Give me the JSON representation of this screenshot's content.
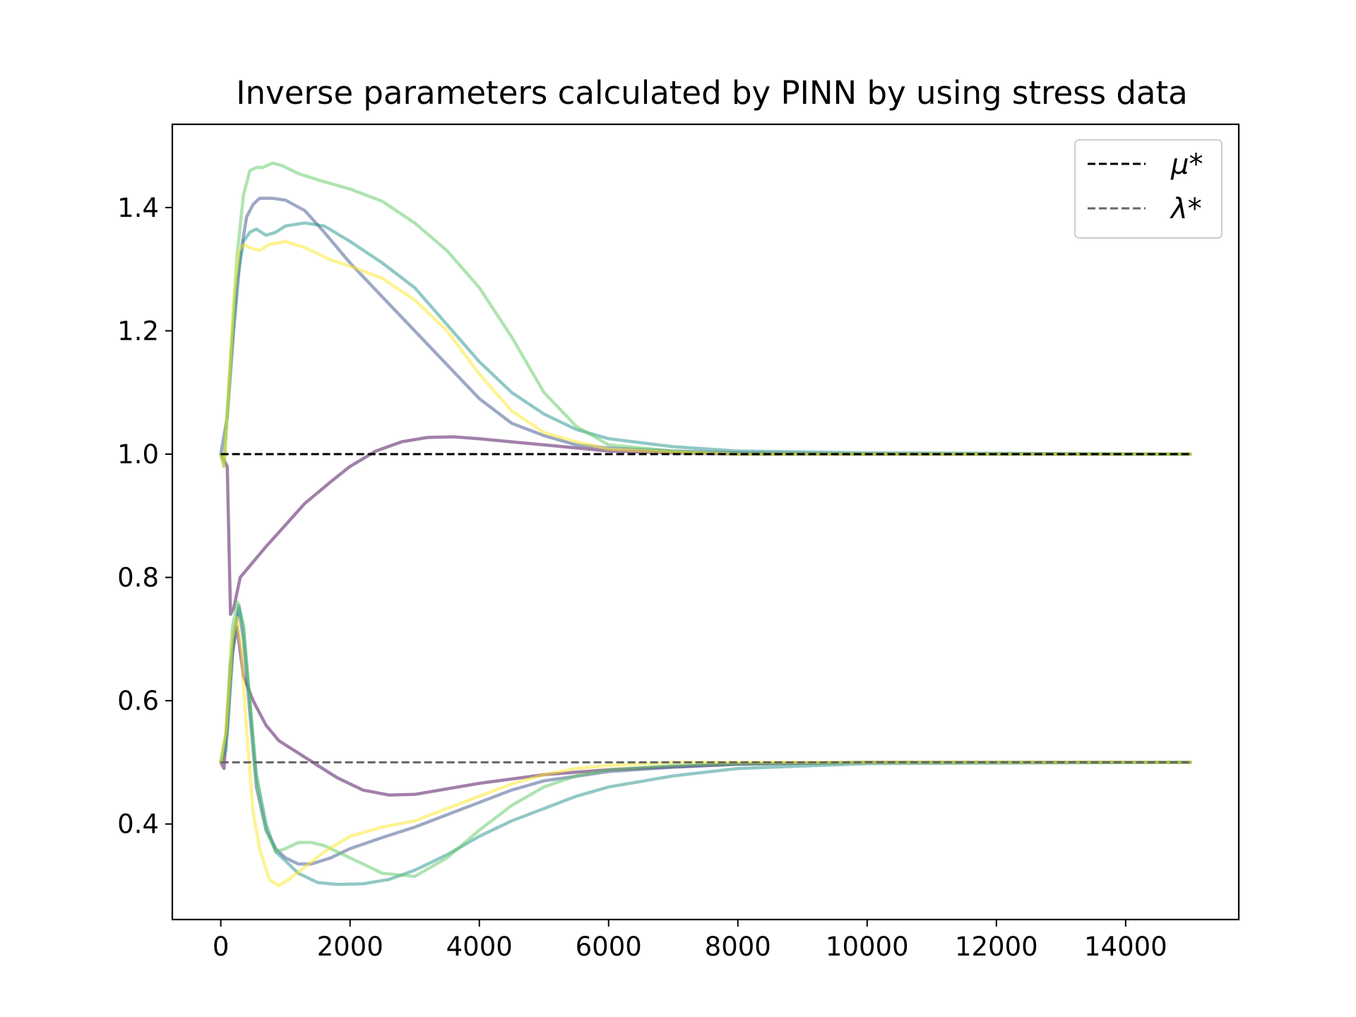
{
  "chart_data": {
    "type": "line",
    "title": "Inverse parameters calculated by PINN by using stress data",
    "xlabel": "",
    "ylabel": "",
    "xlim": [
      -750,
      15750
    ],
    "ylim": [
      0.245,
      1.535
    ],
    "xticks": [
      0,
      2000,
      4000,
      6000,
      8000,
      10000,
      12000,
      14000
    ],
    "xtick_labels": [
      "0",
      "2000",
      "4000",
      "6000",
      "8000",
      "10000",
      "12000",
      "14000"
    ],
    "yticks": [
      0.4,
      0.6,
      0.8,
      1.0,
      1.2,
      1.4
    ],
    "ytick_labels": [
      "0.4",
      "0.6",
      "0.8",
      "1.0",
      "1.2",
      "1.4"
    ],
    "grid": false,
    "legend": {
      "placement": "top-right",
      "entries": [
        {
          "label": "μ*",
          "color": "#000000",
          "style": "dashed"
        },
        {
          "label": "λ*",
          "color": "#666666",
          "style": "dashed"
        }
      ]
    },
    "reference_lines": [
      {
        "name": "μ*",
        "y": 1.0,
        "x_range": [
          0,
          15000
        ],
        "color": "#000000"
      },
      {
        "name": "λ*",
        "y": 0.5,
        "x_range": [
          0,
          15000
        ],
        "color": "#666666"
      }
    ],
    "series": [
      {
        "color": "#440154",
        "points": [
          [
            0,
            1.0
          ],
          [
            50,
            0.99
          ],
          [
            100,
            0.98
          ],
          [
            150,
            0.74
          ],
          [
            200,
            0.75
          ],
          [
            300,
            0.8
          ],
          [
            500,
            0.825
          ],
          [
            700,
            0.85
          ],
          [
            1000,
            0.885
          ],
          [
            1300,
            0.92
          ],
          [
            1700,
            0.955
          ],
          [
            2000,
            0.98
          ],
          [
            2400,
            1.005
          ],
          [
            2800,
            1.02
          ],
          [
            3200,
            1.027
          ],
          [
            3600,
            1.028
          ],
          [
            4000,
            1.025
          ],
          [
            5000,
            1.015
          ],
          [
            6000,
            1.005
          ],
          [
            7000,
            1.002
          ],
          [
            8000,
            1.0
          ],
          [
            10000,
            1.0
          ],
          [
            15000,
            1.0
          ]
        ]
      },
      {
        "color": "#440154",
        "points": [
          [
            0,
            0.5
          ],
          [
            50,
            0.49
          ],
          [
            150,
            0.66
          ],
          [
            250,
            0.72
          ],
          [
            350,
            0.64
          ],
          [
            500,
            0.6
          ],
          [
            700,
            0.56
          ],
          [
            900,
            0.535
          ],
          [
            1200,
            0.515
          ],
          [
            1500,
            0.495
          ],
          [
            1800,
            0.475
          ],
          [
            2200,
            0.455
          ],
          [
            2600,
            0.447
          ],
          [
            3000,
            0.448
          ],
          [
            3500,
            0.457
          ],
          [
            4000,
            0.466
          ],
          [
            5000,
            0.48
          ],
          [
            6000,
            0.488
          ],
          [
            7000,
            0.493
          ],
          [
            8000,
            0.497
          ],
          [
            10000,
            0.5
          ],
          [
            15000,
            0.5
          ]
        ]
      },
      {
        "color": "#3b528b",
        "points": [
          [
            0,
            1.0
          ],
          [
            100,
            1.06
          ],
          [
            200,
            1.2
          ],
          [
            300,
            1.32
          ],
          [
            400,
            1.385
          ],
          [
            500,
            1.405
          ],
          [
            600,
            1.415
          ],
          [
            800,
            1.415
          ],
          [
            1000,
            1.412
          ],
          [
            1300,
            1.395
          ],
          [
            1600,
            1.36
          ],
          [
            2000,
            1.31
          ],
          [
            2500,
            1.255
          ],
          [
            3000,
            1.2
          ],
          [
            3500,
            1.145
          ],
          [
            4000,
            1.09
          ],
          [
            4500,
            1.05
          ],
          [
            5000,
            1.03
          ],
          [
            5500,
            1.015
          ],
          [
            6000,
            1.01
          ],
          [
            7000,
            1.005
          ],
          [
            8000,
            1.002
          ],
          [
            10000,
            1.0
          ],
          [
            15000,
            1.0
          ]
        ]
      },
      {
        "color": "#3b528b",
        "points": [
          [
            0,
            0.5
          ],
          [
            100,
            0.55
          ],
          [
            200,
            0.71
          ],
          [
            280,
            0.75
          ],
          [
            350,
            0.7
          ],
          [
            450,
            0.58
          ],
          [
            550,
            0.46
          ],
          [
            700,
            0.39
          ],
          [
            850,
            0.36
          ],
          [
            1000,
            0.345
          ],
          [
            1200,
            0.335
          ],
          [
            1400,
            0.335
          ],
          [
            1700,
            0.345
          ],
          [
            2000,
            0.36
          ],
          [
            2500,
            0.378
          ],
          [
            3000,
            0.395
          ],
          [
            3500,
            0.415
          ],
          [
            4000,
            0.435
          ],
          [
            4500,
            0.455
          ],
          [
            5000,
            0.47
          ],
          [
            6000,
            0.485
          ],
          [
            7000,
            0.492
          ],
          [
            8000,
            0.497
          ],
          [
            10000,
            0.5
          ],
          [
            15000,
            0.5
          ]
        ]
      },
      {
        "color": "#21918c",
        "points": [
          [
            0,
            1.0
          ],
          [
            50,
            0.98
          ],
          [
            150,
            1.15
          ],
          [
            250,
            1.28
          ],
          [
            350,
            1.345
          ],
          [
            450,
            1.36
          ],
          [
            550,
            1.365
          ],
          [
            700,
            1.355
          ],
          [
            850,
            1.36
          ],
          [
            1000,
            1.37
          ],
          [
            1300,
            1.375
          ],
          [
            1600,
            1.37
          ],
          [
            2000,
            1.345
          ],
          [
            2500,
            1.31
          ],
          [
            3000,
            1.27
          ],
          [
            3500,
            1.21
          ],
          [
            4000,
            1.15
          ],
          [
            4500,
            1.1
          ],
          [
            5000,
            1.065
          ],
          [
            5500,
            1.04
          ],
          [
            6000,
            1.025
          ],
          [
            7000,
            1.012
          ],
          [
            8000,
            1.005
          ],
          [
            10000,
            1.002
          ],
          [
            15000,
            1.0
          ]
        ]
      },
      {
        "color": "#21918c",
        "points": [
          [
            0,
            0.5
          ],
          [
            80,
            0.52
          ],
          [
            200,
            0.7
          ],
          [
            280,
            0.755
          ],
          [
            350,
            0.72
          ],
          [
            450,
            0.6
          ],
          [
            550,
            0.48
          ],
          [
            700,
            0.4
          ],
          [
            850,
            0.355
          ],
          [
            1000,
            0.34
          ],
          [
            1200,
            0.32
          ],
          [
            1500,
            0.305
          ],
          [
            1800,
            0.302
          ],
          [
            2200,
            0.303
          ],
          [
            2600,
            0.31
          ],
          [
            3000,
            0.325
          ],
          [
            3500,
            0.35
          ],
          [
            4000,
            0.38
          ],
          [
            4500,
            0.405
          ],
          [
            5000,
            0.425
          ],
          [
            5500,
            0.445
          ],
          [
            6000,
            0.46
          ],
          [
            7000,
            0.478
          ],
          [
            8000,
            0.49
          ],
          [
            10000,
            0.498
          ],
          [
            15000,
            0.5
          ]
        ]
      },
      {
        "color": "#5ec962",
        "points": [
          [
            0,
            1.0
          ],
          [
            50,
            0.99
          ],
          [
            150,
            1.15
          ],
          [
            250,
            1.32
          ],
          [
            350,
            1.42
          ],
          [
            450,
            1.46
          ],
          [
            550,
            1.465
          ],
          [
            650,
            1.465
          ],
          [
            800,
            1.472
          ],
          [
            950,
            1.468
          ],
          [
            1200,
            1.455
          ],
          [
            1500,
            1.445
          ],
          [
            2000,
            1.43
          ],
          [
            2500,
            1.41
          ],
          [
            3000,
            1.375
          ],
          [
            3500,
            1.33
          ],
          [
            4000,
            1.27
          ],
          [
            4500,
            1.19
          ],
          [
            5000,
            1.1
          ],
          [
            5500,
            1.045
          ],
          [
            6000,
            1.015
          ],
          [
            7000,
            1.005
          ],
          [
            8000,
            1.0
          ],
          [
            10000,
            1.0
          ],
          [
            15000,
            1.0
          ]
        ]
      },
      {
        "color": "#5ec962",
        "points": [
          [
            0,
            0.5
          ],
          [
            80,
            0.55
          ],
          [
            180,
            0.72
          ],
          [
            260,
            0.76
          ],
          [
            350,
            0.72
          ],
          [
            450,
            0.6
          ],
          [
            550,
            0.47
          ],
          [
            700,
            0.39
          ],
          [
            850,
            0.355
          ],
          [
            1000,
            0.36
          ],
          [
            1200,
            0.37
          ],
          [
            1400,
            0.37
          ],
          [
            1600,
            0.365
          ],
          [
            1900,
            0.35
          ],
          [
            2200,
            0.335
          ],
          [
            2500,
            0.32
          ],
          [
            3000,
            0.315
          ],
          [
            3500,
            0.345
          ],
          [
            4000,
            0.39
          ],
          [
            4500,
            0.43
          ],
          [
            5000,
            0.46
          ],
          [
            5500,
            0.478
          ],
          [
            6000,
            0.488
          ],
          [
            7000,
            0.495
          ],
          [
            8000,
            0.498
          ],
          [
            10000,
            0.5
          ],
          [
            15000,
            0.5
          ]
        ]
      },
      {
        "color": "#fde725",
        "points": [
          [
            0,
            1.0
          ],
          [
            50,
            0.98
          ],
          [
            120,
            1.1
          ],
          [
            200,
            1.25
          ],
          [
            280,
            1.33
          ],
          [
            350,
            1.34
          ],
          [
            450,
            1.335
          ],
          [
            600,
            1.33
          ],
          [
            750,
            1.34
          ],
          [
            1000,
            1.345
          ],
          [
            1300,
            1.335
          ],
          [
            1700,
            1.315
          ],
          [
            2000,
            1.305
          ],
          [
            2500,
            1.285
          ],
          [
            3000,
            1.25
          ],
          [
            3500,
            1.2
          ],
          [
            4000,
            1.13
          ],
          [
            4500,
            1.07
          ],
          [
            5000,
            1.035
          ],
          [
            5500,
            1.02
          ],
          [
            6000,
            1.008
          ],
          [
            7000,
            1.003
          ],
          [
            8000,
            1.0
          ],
          [
            15000,
            1.0
          ]
        ]
      },
      {
        "color": "#fde725",
        "points": [
          [
            0,
            0.5
          ],
          [
            80,
            0.55
          ],
          [
            180,
            0.7
          ],
          [
            250,
            0.735
          ],
          [
            320,
            0.68
          ],
          [
            400,
            0.55
          ],
          [
            500,
            0.42
          ],
          [
            600,
            0.36
          ],
          [
            750,
            0.31
          ],
          [
            900,
            0.3
          ],
          [
            1050,
            0.31
          ],
          [
            1300,
            0.33
          ],
          [
            1600,
            0.355
          ],
          [
            2000,
            0.38
          ],
          [
            2500,
            0.395
          ],
          [
            3000,
            0.405
          ],
          [
            3500,
            0.425
          ],
          [
            4000,
            0.445
          ],
          [
            4500,
            0.465
          ],
          [
            5000,
            0.48
          ],
          [
            5500,
            0.49
          ],
          [
            6000,
            0.495
          ],
          [
            7000,
            0.5
          ],
          [
            8000,
            0.5
          ],
          [
            15000,
            0.5
          ]
        ]
      }
    ]
  }
}
